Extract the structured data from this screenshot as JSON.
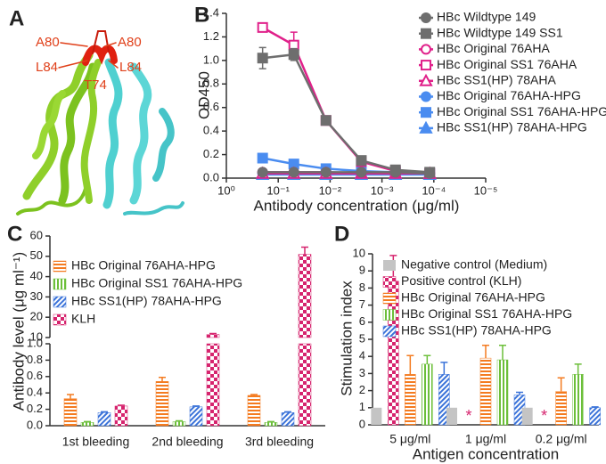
{
  "figure_a": {
    "panel_label": "A",
    "residue_labels": [
      "A80",
      "A80",
      "L84",
      "L84",
      "T74"
    ]
  },
  "chart_data": [
    {
      "type": "line",
      "panel_label": "B",
      "xlabel": "Antibody concentration (μg/ml)",
      "ylabel": "OD450",
      "xscale": "log",
      "xlim": [
        1,
        1e-05
      ],
      "xticks": [
        {
          "value": 1,
          "label": "10⁰"
        },
        {
          "value": 0.1,
          "label": "10⁻¹"
        },
        {
          "value": 0.01,
          "label": "10⁻²"
        },
        {
          "value": 0.001,
          "label": "10⁻³"
        },
        {
          "value": 0.0001,
          "label": "10⁻⁴"
        },
        {
          "value": 1e-05,
          "label": "10⁻⁵"
        }
      ],
      "ylim": [
        0,
        1.4
      ],
      "yticks": [
        {
          "value": 0,
          "label": "0.0"
        },
        0.2,
        0.4,
        0.6,
        0.8,
        {
          "value": 1,
          "label": "1.0"
        },
        1.2,
        1.4
      ],
      "x": [
        0.2,
        0.05,
        0.012,
        0.0025,
        0.00055,
        0.00012
      ],
      "series": [
        {
          "name": "HBc Wildtype 149",
          "color": "#6e6e6e",
          "marker": "circle",
          "filled": true,
          "values": [
            0.05,
            0.05,
            0.05,
            0.05,
            0.05,
            0.04
          ]
        },
        {
          "name": "HBc Wildtype 149 SS1",
          "color": "#6e6e6e",
          "marker": "square",
          "filled": true,
          "values": [
            1.02,
            1.05,
            0.49,
            0.15,
            0.07,
            0.05
          ],
          "errors": [
            0.09,
            0.05,
            0.02,
            0.01,
            0.01,
            0.01
          ]
        },
        {
          "name": "HBc Original 76AHA",
          "color": "#e0208a",
          "marker": "circle",
          "filled": false,
          "values": [
            0.05,
            0.05,
            0.05,
            0.04,
            0.04,
            0.04
          ]
        },
        {
          "name": "HBc Original SS1 76AHA",
          "color": "#e0208a",
          "marker": "square",
          "filled": false,
          "values": [
            1.28,
            1.13,
            0.49,
            0.14,
            0.06,
            0.04
          ],
          "errors": [
            0.01,
            0.11,
            0.02,
            0.01,
            0.01,
            0.01
          ]
        },
        {
          "name": "HBc SS1(HP) 78AHA",
          "color": "#e0208a",
          "marker": "triangle",
          "filled": false,
          "values": [
            0.04,
            0.04,
            0.04,
            0.04,
            0.04,
            0.04
          ]
        },
        {
          "name": "HBc Original 76AHA-HPG",
          "color": "#4a8cf0",
          "marker": "circle",
          "filled": true,
          "values": [
            0.04,
            0.04,
            0.04,
            0.04,
            0.04,
            0.04
          ]
        },
        {
          "name": "HBc Original SS1 76AHA-HPG",
          "color": "#4a8cf0",
          "marker": "square",
          "filled": true,
          "values": [
            0.17,
            0.12,
            0.08,
            0.06,
            0.05,
            0.04
          ]
        },
        {
          "name": "HBc SS1(HP) 78AHA-HPG",
          "color": "#4a8cf0",
          "marker": "triangle",
          "filled": true,
          "values": [
            0.03,
            0.03,
            0.03,
            0.03,
            0.03,
            0.03
          ]
        }
      ]
    },
    {
      "type": "bar",
      "panel_label": "C",
      "ylabel": "Antibody level (μg ml⁻¹)",
      "categories": [
        "1st bleeding",
        "2nd bleeding",
        "3rd bleeding"
      ],
      "ylim_lower": [
        0,
        1
      ],
      "yticks_lower": [
        {
          "value": 0,
          "label": "0.0"
        },
        0.2,
        0.4,
        0.6,
        0.8,
        {
          "value": 1,
          "label": "1.0"
        }
      ],
      "ylim_upper": [
        10,
        60
      ],
      "yticks_upper": [
        10,
        20,
        30,
        40,
        50,
        60
      ],
      "series": [
        {
          "name": "HBc Original 76AHA-HPG",
          "color": "#f47b20",
          "pattern": "horizontal",
          "values": [
            0.33,
            0.54,
            0.37
          ],
          "errors": [
            0.05,
            0.05,
            0.01
          ]
        },
        {
          "name": "HBc Original SS1 76AHA-HPG",
          "color": "#6cbf3a",
          "pattern": "vertical",
          "values": [
            0.04,
            0.05,
            0.04
          ],
          "errors": [
            0.01,
            0.01,
            0.01
          ]
        },
        {
          "name": "HBc SS1(HP) 78AHA-HPG",
          "color": "#3b73d9",
          "pattern": "diagonal",
          "values": [
            0.16,
            0.23,
            0.16
          ],
          "errors": [
            0.01,
            0.01,
            0.01
          ]
        },
        {
          "name": "KLH",
          "color": "#d6246e",
          "pattern": "checker",
          "values": [
            0.24,
            11.5,
            51
          ],
          "errors": [
            0.01,
            0.5,
            3.5
          ]
        }
      ]
    },
    {
      "type": "bar",
      "panel_label": "D",
      "xlabel": "Antigen concentration",
      "ylabel": "Stimulation index",
      "categories": [
        "5 μg/ml",
        "1 μg/ml",
        "0.2 μg/ml"
      ],
      "ylim": [
        0,
        10
      ],
      "yticks": [
        0,
        1,
        2,
        3,
        4,
        5,
        6,
        7,
        8,
        9,
        10
      ],
      "series": [
        {
          "name": "Negative control (Medium)",
          "color": "#c4c4c4",
          "pattern": "solid",
          "values": [
            1,
            1,
            1
          ]
        },
        {
          "name": "Positive control (KLH)",
          "color": "#d6246e",
          "pattern": "checker",
          "values": [
            8.4,
            null,
            null
          ],
          "errors": [
            1.5,
            null,
            null
          ],
          "na_label": "*"
        },
        {
          "name": "HBc Original 76AHA-HPG",
          "color": "#f47b20",
          "pattern": "horizontal",
          "values": [
            2.95,
            3.9,
            1.95
          ],
          "errors": [
            1.1,
            0.75,
            0.8
          ]
        },
        {
          "name": "HBc Original SS1 76AHA-HPG",
          "color": "#6cbf3a",
          "pattern": "vertical",
          "values": [
            3.55,
            3.8,
            2.95
          ],
          "errors": [
            0.5,
            0.85,
            0.6
          ]
        },
        {
          "name": "HBc SS1(HP) 78AHA-HPG",
          "color": "#3b73d9",
          "pattern": "diagonal",
          "values": [
            2.95,
            1.75,
            1.0
          ],
          "errors": [
            0.7,
            0.15,
            0.05
          ]
        }
      ]
    }
  ]
}
